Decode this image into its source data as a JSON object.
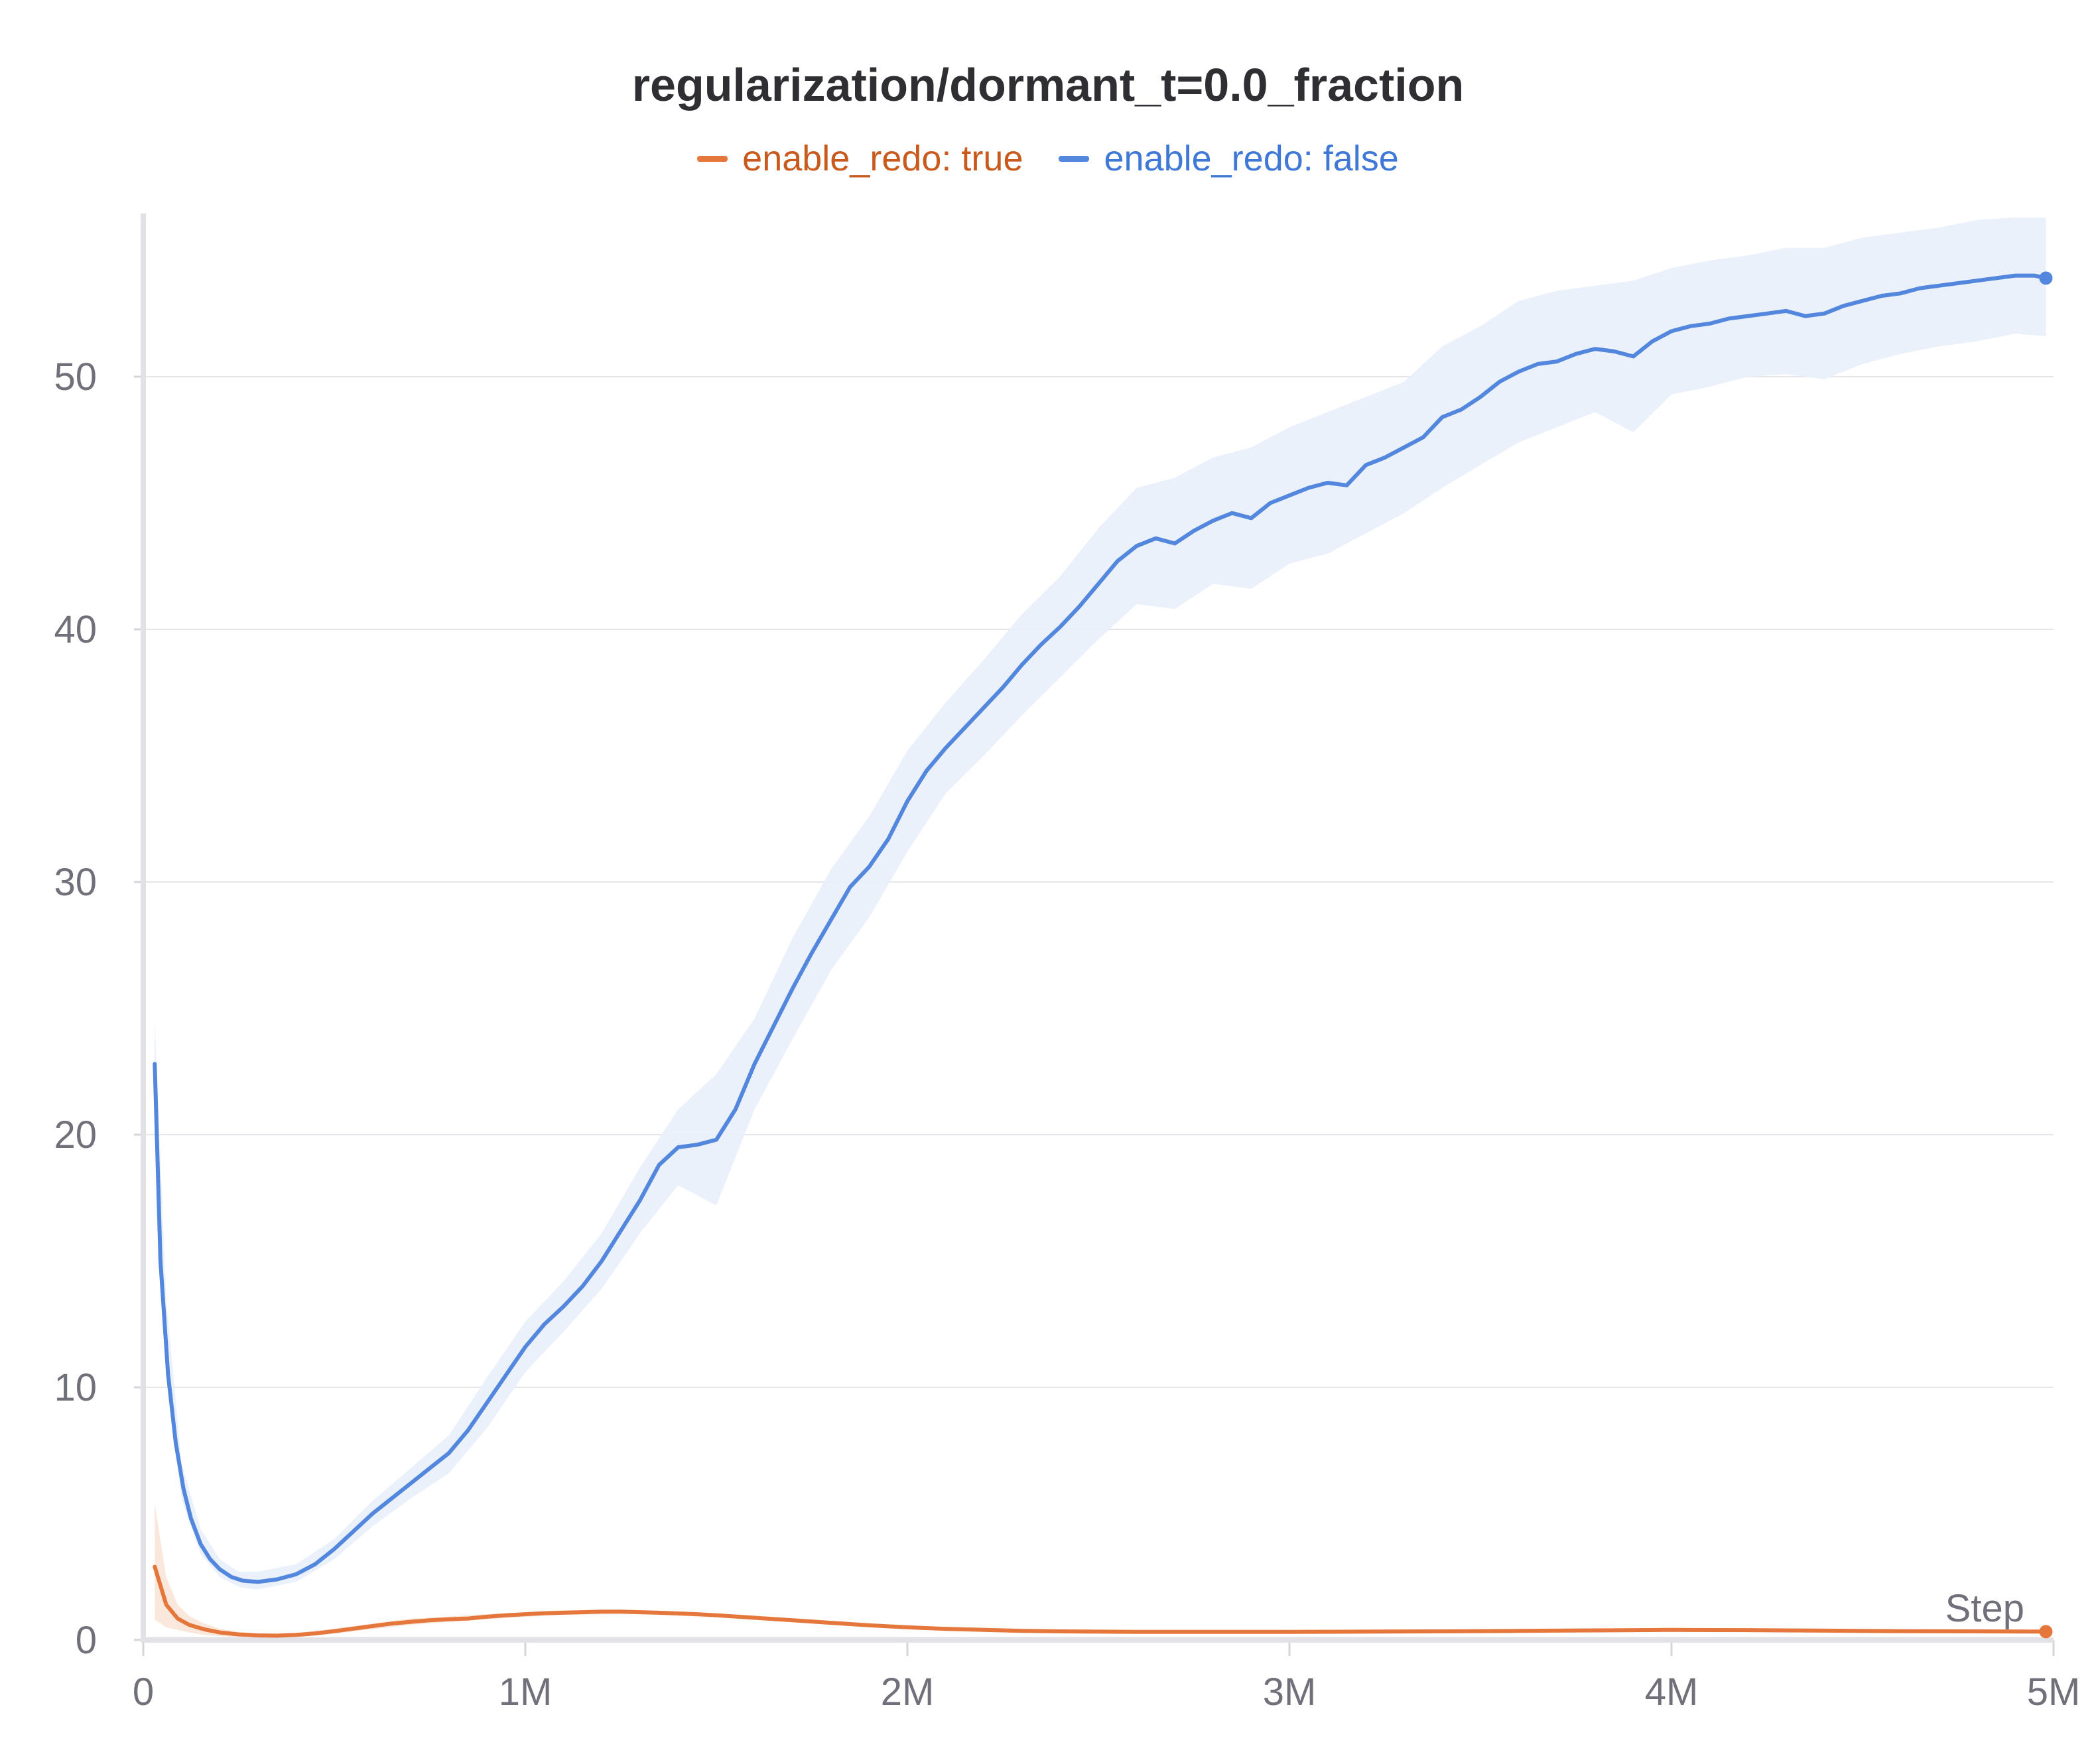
{
  "chart_data": {
    "type": "line",
    "title": "regularization/dormant_t=0.0_fraction",
    "xlabel": "Step",
    "ylabel": "",
    "xlim": [
      0,
      5000000
    ],
    "ylim": [
      0,
      55
    ],
    "grid": true,
    "legend_placement": "top-center",
    "x_ticks": [
      {
        "value": 0,
        "label": "0"
      },
      {
        "value": 1000000,
        "label": "1M"
      },
      {
        "value": 2000000,
        "label": "2M"
      },
      {
        "value": 3000000,
        "label": "3M"
      },
      {
        "value": 4000000,
        "label": "4M"
      },
      {
        "value": 5000000,
        "label": "5M"
      }
    ],
    "y_ticks": [
      {
        "value": 0,
        "label": "0"
      },
      {
        "value": 10,
        "label": "10"
      },
      {
        "value": 20,
        "label": "20"
      },
      {
        "value": 30,
        "label": "30"
      },
      {
        "value": 40,
        "label": "40"
      },
      {
        "value": 50,
        "label": "50"
      }
    ],
    "series": [
      {
        "name": "enable_redo: true",
        "color": "#e5773d",
        "band_color": "#fbe6d8",
        "points": [
          [
            30000,
            2.9
          ],
          [
            60000,
            1.4
          ],
          [
            90000,
            0.85
          ],
          [
            120000,
            0.6
          ],
          [
            160000,
            0.42
          ],
          [
            200000,
            0.3
          ],
          [
            250000,
            0.22
          ],
          [
            300000,
            0.18
          ],
          [
            350000,
            0.17
          ],
          [
            400000,
            0.2
          ],
          [
            450000,
            0.26
          ],
          [
            500000,
            0.35
          ],
          [
            550000,
            0.45
          ],
          [
            600000,
            0.55
          ],
          [
            650000,
            0.65
          ],
          [
            700000,
            0.72
          ],
          [
            750000,
            0.78
          ],
          [
            800000,
            0.82
          ],
          [
            850000,
            0.85
          ],
          [
            900000,
            0.92
          ],
          [
            950000,
            0.98
          ],
          [
            1000000,
            1.02
          ],
          [
            1050000,
            1.06
          ],
          [
            1100000,
            1.08
          ],
          [
            1150000,
            1.1
          ],
          [
            1200000,
            1.12
          ],
          [
            1250000,
            1.12
          ],
          [
            1300000,
            1.1
          ],
          [
            1350000,
            1.08
          ],
          [
            1400000,
            1.05
          ],
          [
            1450000,
            1.02
          ],
          [
            1500000,
            0.98
          ],
          [
            1600000,
            0.88
          ],
          [
            1700000,
            0.78
          ],
          [
            1800000,
            0.68
          ],
          [
            1900000,
            0.58
          ],
          [
            2000000,
            0.5
          ],
          [
            2100000,
            0.44
          ],
          [
            2200000,
            0.4
          ],
          [
            2300000,
            0.36
          ],
          [
            2400000,
            0.34
          ],
          [
            2500000,
            0.33
          ],
          [
            2600000,
            0.32
          ],
          [
            2700000,
            0.32
          ],
          [
            2800000,
            0.32
          ],
          [
            2900000,
            0.32
          ],
          [
            3000000,
            0.32
          ],
          [
            3200000,
            0.33
          ],
          [
            3400000,
            0.34
          ],
          [
            3600000,
            0.36
          ],
          [
            3800000,
            0.38
          ],
          [
            4000000,
            0.4
          ],
          [
            4200000,
            0.39
          ],
          [
            4400000,
            0.37
          ],
          [
            4600000,
            0.35
          ],
          [
            4800000,
            0.34
          ],
          [
            4980000,
            0.33
          ]
        ],
        "band": [
          [
            30000,
            0.8,
            5.4
          ],
          [
            60000,
            0.5,
            2.5
          ],
          [
            90000,
            0.4,
            1.4
          ],
          [
            120000,
            0.3,
            0.95
          ],
          [
            160000,
            0.2,
            0.65
          ],
          [
            200000,
            0.15,
            0.45
          ],
          [
            250000,
            0.12,
            0.32
          ],
          [
            300000,
            0.1,
            0.26
          ],
          [
            400000,
            0.12,
            0.28
          ],
          [
            500000,
            0.25,
            0.45
          ],
          [
            700000,
            0.6,
            0.85
          ],
          [
            900000,
            0.82,
            1.02
          ],
          [
            1100000,
            1.0,
            1.18
          ],
          [
            1300000,
            1.02,
            1.18
          ],
          [
            1500000,
            0.9,
            1.06
          ],
          [
            1800000,
            0.6,
            0.76
          ],
          [
            2000000,
            0.44,
            0.56
          ],
          [
            2500000,
            0.28,
            0.38
          ],
          [
            3000000,
            0.27,
            0.37
          ],
          [
            3500000,
            0.3,
            0.4
          ],
          [
            4000000,
            0.34,
            0.46
          ],
          [
            4500000,
            0.3,
            0.4
          ],
          [
            4980000,
            0.28,
            0.38
          ]
        ]
      },
      {
        "name": "enable_redo: false",
        "color": "#5387dd",
        "band_color": "#e8f0fb",
        "points": [
          [
            30000,
            22.8
          ],
          [
            45000,
            15.0
          ],
          [
            65000,
            10.5
          ],
          [
            85000,
            7.8
          ],
          [
            105000,
            6.0
          ],
          [
            125000,
            4.8
          ],
          [
            150000,
            3.8
          ],
          [
            175000,
            3.2
          ],
          [
            200000,
            2.8
          ],
          [
            230000,
            2.5
          ],
          [
            260000,
            2.35
          ],
          [
            300000,
            2.3
          ],
          [
            350000,
            2.4
          ],
          [
            400000,
            2.6
          ],
          [
            450000,
            3.0
          ],
          [
            500000,
            3.6
          ],
          [
            550000,
            4.3
          ],
          [
            600000,
            5.0
          ],
          [
            650000,
            5.6
          ],
          [
            700000,
            6.2
          ],
          [
            750000,
            6.8
          ],
          [
            800000,
            7.4
          ],
          [
            850000,
            8.3
          ],
          [
            900000,
            9.4
          ],
          [
            950000,
            10.5
          ],
          [
            1000000,
            11.6
          ],
          [
            1050000,
            12.5
          ],
          [
            1100000,
            13.2
          ],
          [
            1150000,
            14.0
          ],
          [
            1200000,
            15.0
          ],
          [
            1250000,
            16.2
          ],
          [
            1300000,
            17.4
          ],
          [
            1350000,
            18.8
          ],
          [
            1400000,
            19.5
          ],
          [
            1450000,
            19.6
          ],
          [
            1500000,
            19.8
          ],
          [
            1550000,
            21.0
          ],
          [
            1600000,
            22.8
          ],
          [
            1650000,
            24.3
          ],
          [
            1700000,
            25.8
          ],
          [
            1750000,
            27.2
          ],
          [
            1800000,
            28.5
          ],
          [
            1850000,
            29.8
          ],
          [
            1900000,
            30.6
          ],
          [
            1950000,
            31.7
          ],
          [
            2000000,
            33.2
          ],
          [
            2050000,
            34.4
          ],
          [
            2100000,
            35.3
          ],
          [
            2150000,
            36.1
          ],
          [
            2200000,
            36.9
          ],
          [
            2250000,
            37.7
          ],
          [
            2300000,
            38.6
          ],
          [
            2350000,
            39.4
          ],
          [
            2400000,
            40.1
          ],
          [
            2450000,
            40.9
          ],
          [
            2500000,
            41.8
          ],
          [
            2550000,
            42.7
          ],
          [
            2600000,
            43.3
          ],
          [
            2650000,
            43.6
          ],
          [
            2700000,
            43.4
          ],
          [
            2750000,
            43.9
          ],
          [
            2800000,
            44.3
          ],
          [
            2850000,
            44.6
          ],
          [
            2900000,
            44.4
          ],
          [
            2950000,
            45.0
          ],
          [
            3000000,
            45.3
          ],
          [
            3050000,
            45.6
          ],
          [
            3100000,
            45.8
          ],
          [
            3150000,
            45.7
          ],
          [
            3200000,
            46.5
          ],
          [
            3250000,
            46.8
          ],
          [
            3300000,
            47.2
          ],
          [
            3350000,
            47.6
          ],
          [
            3400000,
            48.4
          ],
          [
            3450000,
            48.7
          ],
          [
            3500000,
            49.2
          ],
          [
            3550000,
            49.8
          ],
          [
            3600000,
            50.2
          ],
          [
            3650000,
            50.5
          ],
          [
            3700000,
            50.6
          ],
          [
            3750000,
            50.9
          ],
          [
            3800000,
            51.1
          ],
          [
            3850000,
            51.0
          ],
          [
            3900000,
            50.8
          ],
          [
            3950000,
            51.4
          ],
          [
            4000000,
            51.8
          ],
          [
            4050000,
            52.0
          ],
          [
            4100000,
            52.1
          ],
          [
            4150000,
            52.3
          ],
          [
            4200000,
            52.4
          ],
          [
            4250000,
            52.5
          ],
          [
            4300000,
            52.6
          ],
          [
            4350000,
            52.4
          ],
          [
            4400000,
            52.5
          ],
          [
            4450000,
            52.8
          ],
          [
            4500000,
            53.0
          ],
          [
            4550000,
            53.2
          ],
          [
            4600000,
            53.3
          ],
          [
            4650000,
            53.5
          ],
          [
            4700000,
            53.6
          ],
          [
            4750000,
            53.7
          ],
          [
            4800000,
            53.8
          ],
          [
            4850000,
            53.9
          ],
          [
            4900000,
            54.0
          ],
          [
            4950000,
            54.0
          ],
          [
            4980000,
            53.9
          ]
        ],
        "band": [
          [
            30000,
            20.5,
            24.5
          ],
          [
            60000,
            11.0,
            13.5
          ],
          [
            100000,
            5.6,
            7.0
          ],
          [
            150000,
            3.4,
            4.4
          ],
          [
            200000,
            2.5,
            3.2
          ],
          [
            250000,
            2.1,
            2.7
          ],
          [
            300000,
            2.0,
            2.7
          ],
          [
            400000,
            2.3,
            3.0
          ],
          [
            500000,
            3.2,
            4.0
          ],
          [
            600000,
            4.5,
            5.5
          ],
          [
            700000,
            5.6,
            6.8
          ],
          [
            800000,
            6.6,
            8.1
          ],
          [
            900000,
            8.4,
            10.4
          ],
          [
            1000000,
            10.6,
            12.6
          ],
          [
            1100000,
            12.2,
            14.2
          ],
          [
            1200000,
            13.9,
            16.1
          ],
          [
            1300000,
            16.1,
            18.7
          ],
          [
            1400000,
            18.0,
            21.0
          ],
          [
            1500000,
            17.2,
            22.4
          ],
          [
            1600000,
            21.0,
            24.6
          ],
          [
            1700000,
            23.8,
            27.8
          ],
          [
            1800000,
            26.5,
            30.5
          ],
          [
            1900000,
            28.6,
            32.6
          ],
          [
            2000000,
            31.2,
            35.2
          ],
          [
            2100000,
            33.5,
            37.1
          ],
          [
            2200000,
            35.0,
            38.8
          ],
          [
            2300000,
            36.6,
            40.6
          ],
          [
            2400000,
            38.1,
            42.1
          ],
          [
            2500000,
            39.6,
            44.0
          ],
          [
            2600000,
            41.0,
            45.6
          ],
          [
            2700000,
            40.8,
            46.0
          ],
          [
            2800000,
            41.8,
            46.8
          ],
          [
            2900000,
            41.6,
            47.2
          ],
          [
            3000000,
            42.6,
            48.0
          ],
          [
            3100000,
            43.0,
            48.6
          ],
          [
            3200000,
            43.8,
            49.2
          ],
          [
            3300000,
            44.6,
            49.8
          ],
          [
            3400000,
            45.6,
            51.2
          ],
          [
            3500000,
            46.5,
            52.0
          ],
          [
            3600000,
            47.4,
            53.0
          ],
          [
            3700000,
            48.0,
            53.4
          ],
          [
            3800000,
            48.6,
            53.6
          ],
          [
            3900000,
            47.8,
            53.8
          ],
          [
            4000000,
            49.3,
            54.3
          ],
          [
            4100000,
            49.6,
            54.6
          ],
          [
            4200000,
            50.0,
            54.8
          ],
          [
            4300000,
            50.1,
            55.1
          ],
          [
            4400000,
            49.9,
            55.1
          ],
          [
            4500000,
            50.5,
            55.5
          ],
          [
            4600000,
            50.9,
            55.7
          ],
          [
            4700000,
            51.2,
            55.9
          ],
          [
            4800000,
            51.4,
            56.2
          ],
          [
            4900000,
            51.7,
            56.3
          ],
          [
            4980000,
            51.6,
            56.3
          ]
        ]
      }
    ]
  }
}
